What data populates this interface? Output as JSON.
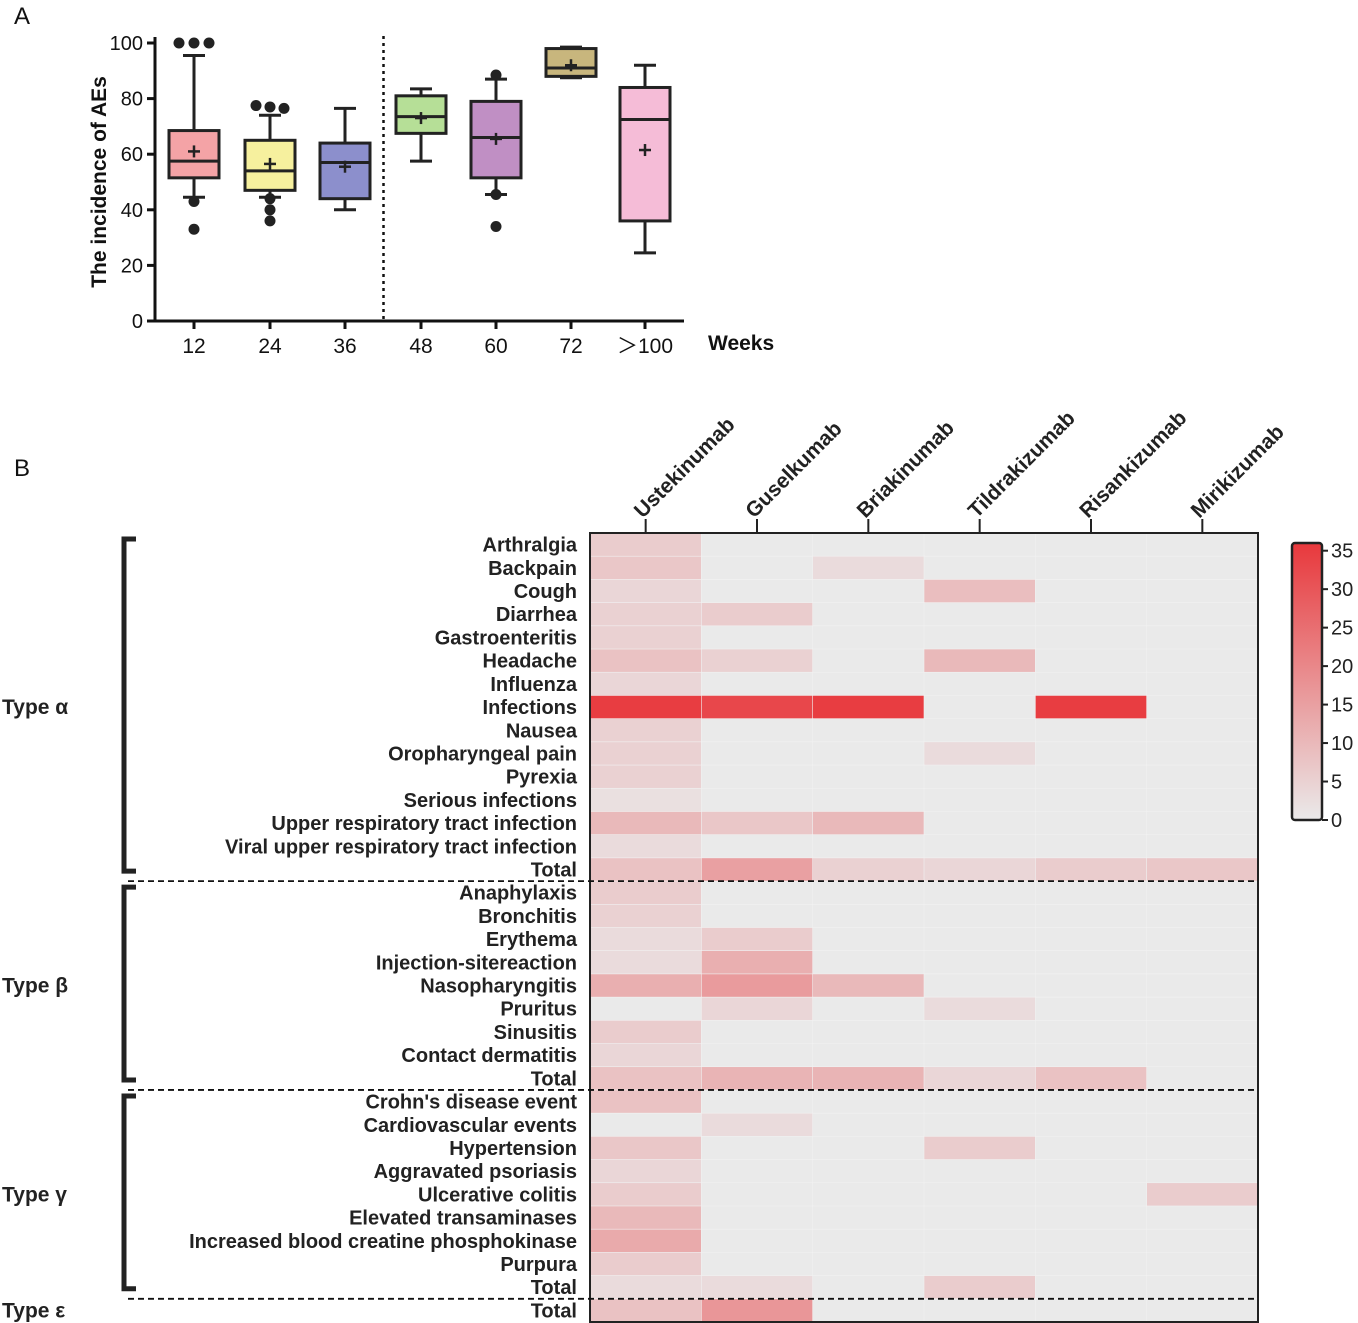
{
  "chart_data": [
    {
      "panel": "A",
      "type": "box",
      "ylabel": "The incidence of AEs",
      "xlabel": "Weeks",
      "ylim": [
        0,
        100
      ],
      "yticks": [
        0,
        20,
        40,
        60,
        80,
        100
      ],
      "categories": [
        "12",
        "24",
        "36",
        "48",
        "60",
        "72",
        "＞100"
      ],
      "colors": [
        "#f4a3a6",
        "#f6f09e",
        "#8c8fcc",
        "#b6df97",
        "#c08fc4",
        "#c8b67d",
        "#f5bcd7"
      ],
      "divider_after_index": 2,
      "boxes": [
        {
          "whisker_low": 44.5,
          "q1": 51.5,
          "median": 57.5,
          "q3": 68.5,
          "whisker_high": 95.5,
          "mean": 61,
          "outliers": [
            100,
            100,
            100,
            43,
            33
          ]
        },
        {
          "whisker_low": 44.5,
          "q1": 47,
          "median": 54,
          "q3": 65,
          "whisker_high": 74,
          "mean": 56.5,
          "outliers": [
            77.5,
            77,
            76.5,
            44,
            40,
            36
          ]
        },
        {
          "whisker_low": 40,
          "q1": 44,
          "median": 57,
          "q3": 64,
          "whisker_high": 76.5,
          "mean": 55.5,
          "outliers": []
        },
        {
          "whisker_low": 57.5,
          "q1": 67.5,
          "median": 73.5,
          "q3": 81,
          "whisker_high": 83.5,
          "mean": 73,
          "outliers": []
        },
        {
          "whisker_low": 45.5,
          "q1": 51.5,
          "median": 66,
          "q3": 79,
          "whisker_high": 87,
          "mean": 65.5,
          "outliers": [
            88.5,
            45.5,
            34
          ]
        },
        {
          "whisker_low": 87.5,
          "q1": 88,
          "median": 91,
          "q3": 98,
          "whisker_high": 98.5,
          "mean": 92,
          "outliers": []
        },
        {
          "whisker_low": 24.5,
          "q1": 36,
          "median": 72.5,
          "q3": 84,
          "whisker_high": 92,
          "mean": 61.5,
          "outliers": []
        }
      ]
    },
    {
      "panel": "B",
      "type": "heatmap",
      "columns": [
        "Ustekinumab",
        "Guselkumab",
        "Briakinumab",
        "Tildrakizumab",
        "Risankizumab",
        "Mirikizumab"
      ],
      "colorbar": {
        "min": 0,
        "max": 36,
        "ticks": [
          0,
          5,
          10,
          15,
          20,
          25,
          30,
          35
        ],
        "low_color": "#eaeaea",
        "high_color": "#e8383c"
      },
      "groups": [
        {
          "label": "Type α",
          "rows": [
            {
              "label": "Arthralgia",
              "values": [
                6,
                0,
                0,
                0,
                0,
                0
              ]
            },
            {
              "label": "Backpain",
              "values": [
                7,
                0,
                3,
                0,
                0,
                0
              ]
            },
            {
              "label": "Cough",
              "values": [
                4,
                0,
                0,
                9,
                0,
                0
              ]
            },
            {
              "label": "Diarrhea",
              "values": [
                5,
                6,
                0,
                0,
                0,
                0
              ]
            },
            {
              "label": "Gastroenteritis",
              "values": [
                5,
                0,
                0,
                0,
                0,
                0
              ]
            },
            {
              "label": "Headache",
              "values": [
                8,
                5,
                0,
                10,
                0,
                0
              ]
            },
            {
              "label": "Influenza",
              "values": [
                4,
                0,
                0,
                0,
                0,
                0
              ]
            },
            {
              "label": "Infections",
              "values": [
                35,
                33,
                35,
                0,
                35,
                0
              ]
            },
            {
              "label": "Nausea",
              "values": [
                5,
                0,
                0,
                0,
                0,
                0
              ]
            },
            {
              "label": "Oropharyngeal pain",
              "values": [
                5,
                0,
                0,
                3,
                0,
                0
              ]
            },
            {
              "label": "Pyrexia",
              "values": [
                5,
                0,
                0,
                0,
                0,
                0
              ]
            },
            {
              "label": "Serious infections",
              "values": [
                2,
                0,
                0,
                0,
                0,
                0
              ]
            },
            {
              "label": "Upper respiratory tract infection",
              "values": [
                10,
                7,
                10,
                0,
                0,
                0
              ]
            },
            {
              "label": "Viral upper respiratory tract infection",
              "values": [
                3,
                0,
                0,
                0,
                0,
                0
              ]
            },
            {
              "label": "Total",
              "values": [
                8,
                15,
                5,
                4,
                6,
                7
              ]
            }
          ]
        },
        {
          "label": "Type β",
          "rows": [
            {
              "label": "Anaphylaxis",
              "values": [
                6,
                0,
                0,
                0,
                0,
                0
              ]
            },
            {
              "label": "Bronchitis",
              "values": [
                5,
                0,
                0,
                0,
                0,
                0
              ]
            },
            {
              "label": "Erythema",
              "values": [
                3,
                6,
                0,
                0,
                0,
                0
              ]
            },
            {
              "label": "Injection-sitereaction",
              "values": [
                3,
                12,
                0,
                0,
                0,
                0
              ]
            },
            {
              "label": "Nasopharyngitis",
              "values": [
                12,
                16,
                10,
                0,
                0,
                0
              ]
            },
            {
              "label": "Pruritus",
              "values": [
                0,
                4,
                0,
                3,
                0,
                0
              ]
            },
            {
              "label": "Sinusitis",
              "values": [
                6,
                0,
                0,
                0,
                0,
                0
              ]
            },
            {
              "label": "Contact dermatitis",
              "values": [
                4,
                0,
                0,
                0,
                0,
                0
              ]
            },
            {
              "label": "Total",
              "values": [
                8,
                11,
                11,
                4,
                8,
                0
              ]
            }
          ]
        },
        {
          "label": "Type γ",
          "rows": [
            {
              "label": "Crohn's disease event",
              "values": [
                8,
                0,
                0,
                0,
                0,
                0
              ]
            },
            {
              "label": "Cardiovascular events",
              "values": [
                0,
                3,
                0,
                0,
                0,
                0
              ]
            },
            {
              "label": "Hypertension",
              "values": [
                7,
                0,
                0,
                6,
                0,
                0
              ]
            },
            {
              "label": "Aggravated psoriasis",
              "values": [
                4,
                0,
                0,
                0,
                0,
                0
              ]
            },
            {
              "label": "Ulcerative colitis",
              "values": [
                6,
                0,
                0,
                0,
                0,
                6
              ]
            },
            {
              "label": "Elevated transaminases",
              "values": [
                10,
                0,
                0,
                0,
                0,
                0
              ]
            },
            {
              "label": "Increased blood creatine phosphokinase",
              "values": [
                13,
                0,
                0,
                0,
                0,
                0
              ]
            },
            {
              "label": "Purpura",
              "values": [
                6,
                0,
                0,
                0,
                0,
                0
              ]
            },
            {
              "label": "Total",
              "values": [
                3,
                3,
                0,
                6,
                0,
                0
              ]
            }
          ]
        },
        {
          "label": "Type ε",
          "rows": [
            {
              "label": "Total",
              "values": [
                8,
                17,
                0,
                0,
                0,
                0
              ]
            }
          ]
        }
      ]
    }
  ],
  "panel_labels": {
    "a": "A",
    "b": "B"
  }
}
